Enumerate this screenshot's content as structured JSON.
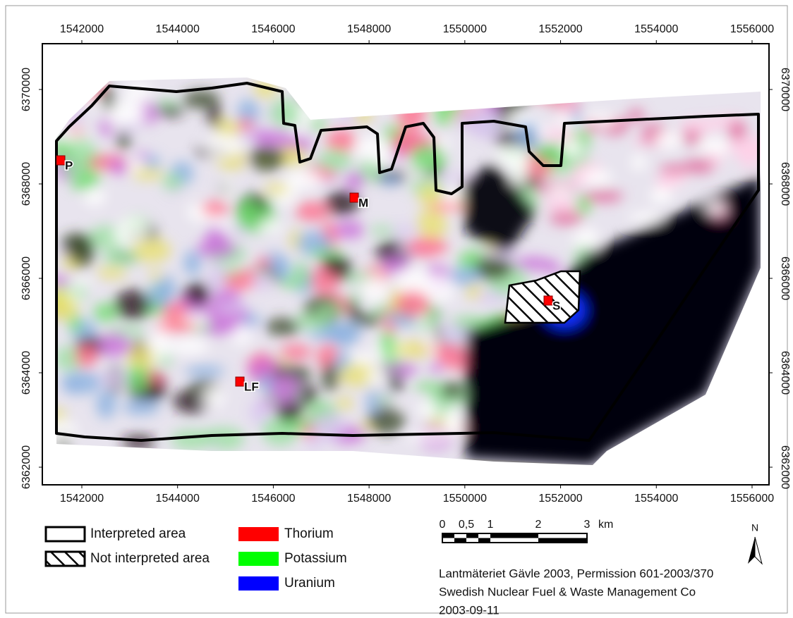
{
  "map": {
    "xlim": [
      1541175,
      1556354
    ],
    "ylim": [
      6361627,
      6370970
    ],
    "xticks": [
      1542000,
      1544000,
      1546000,
      1548000,
      1550000,
      1552000,
      1554000,
      1556000
    ],
    "yticks": [
      6362000,
      6364000,
      6366000,
      6368000,
      6370000
    ],
    "points": [
      {
        "label": "P"
      },
      {
        "label": "M"
      },
      {
        "label": "S"
      },
      {
        "label": "LF"
      }
    ]
  },
  "legend": {
    "areas": [
      "Interpreted area",
      "Not interpreted area"
    ],
    "elements": [
      {
        "name": "Thorium",
        "color": "#ff0000"
      },
      {
        "name": "Potassium",
        "color": "#00ff00"
      },
      {
        "name": "Uranium",
        "color": "#0000ff"
      }
    ]
  },
  "scale_bar": {
    "labels": [
      "0",
      "0,5",
      "1",
      "2",
      "3"
    ],
    "unit": "km"
  },
  "north": "N",
  "credits": [
    "Lantmäteriet Gävle 2003, Permission 601-2003/370",
    "Swedish Nuclear Fuel & Waste Management Co",
    "2003-09-11"
  ]
}
